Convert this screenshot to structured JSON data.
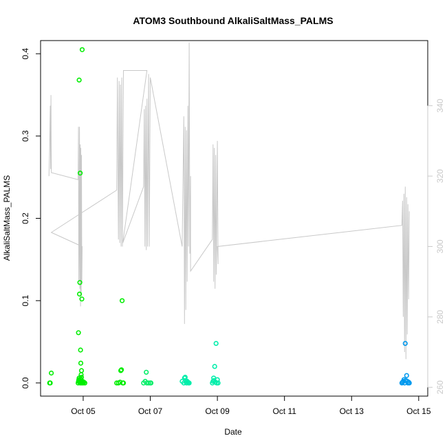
{
  "chart_data": {
    "type": "scatter",
    "title": "ATOM3 Southbound AlkaliSaltMass_PALMS",
    "xlabel": "Date",
    "ylabel": "AlkaliSaltMass_PALMS",
    "x_tick_labels": [
      "Oct 05",
      "Oct 07",
      "Oct 09",
      "Oct 11",
      "Oct 13",
      "Oct 15"
    ],
    "x_tick_values": [
      5,
      7,
      9,
      11,
      13,
      15
    ],
    "xlim": [
      3.73,
      15.27
    ],
    "y_tick_labels": [
      "0.0",
      "0.1",
      "0.2",
      "0.3",
      "0.4"
    ],
    "y_tick_values": [
      0,
      0.1,
      0.2,
      0.3,
      0.4
    ],
    "ylim": [
      -0.016,
      0.416
    ],
    "y2_tick_labels": [
      "260",
      "280",
      "300",
      "320",
      "340"
    ],
    "y2_tick_values": [
      260,
      280,
      300,
      320,
      340
    ],
    "y2lim": [
      257.5,
      358.5
    ],
    "grid": false,
    "colors": {
      "green": "#00ee00",
      "spring": "#00ee66",
      "teal": "#00eeaa",
      "blue": "#0099ee",
      "line": "#c8c8c8"
    },
    "scatter_series": [
      {
        "color": "green",
        "points": [
          [
            4.0,
            0.0
          ],
          [
            4.02,
            0.0
          ],
          [
            4.05,
            0.012
          ],
          [
            4.85,
            0.0
          ],
          [
            4.86,
            0.002
          ],
          [
            4.87,
            0.004
          ],
          [
            4.88,
            0.006
          ],
          [
            4.89,
            0.001
          ],
          [
            4.9,
            0.003
          ],
          [
            4.91,
            0.0
          ],
          [
            4.92,
            0.005
          ],
          [
            4.93,
            0.002
          ],
          [
            4.94,
            0.0
          ],
          [
            4.95,
            0.007
          ],
          [
            4.96,
            0.001
          ],
          [
            4.97,
            0.0
          ],
          [
            4.98,
            0.002
          ],
          [
            5.0,
            0.0
          ],
          [
            5.02,
            0.001
          ],
          [
            5.05,
            0.0
          ],
          [
            4.86,
            0.061
          ],
          [
            4.88,
            0.368
          ],
          [
            4.89,
            0.108
          ],
          [
            4.9,
            0.122
          ],
          [
            4.91,
            0.255
          ],
          [
            4.92,
            0.04
          ],
          [
            4.93,
            0.024
          ],
          [
            4.95,
            0.015
          ],
          [
            4.96,
            0.102
          ],
          [
            4.97,
            0.405
          ],
          [
            4.94,
            0.01
          ],
          [
            6.0,
            0.0
          ],
          [
            6.05,
            0.0
          ],
          [
            6.1,
            0.001
          ],
          [
            6.12,
            0.015
          ],
          [
            6.14,
            0.016
          ],
          [
            6.16,
            0.1
          ],
          [
            6.18,
            0.0
          ],
          [
            6.2,
            0.0
          ]
        ]
      },
      {
        "color": "spring",
        "points": [
          [
            6.8,
            0.0
          ],
          [
            6.85,
            0.002
          ],
          [
            6.88,
            0.013
          ],
          [
            6.9,
            0.0
          ],
          [
            6.95,
            0.0
          ],
          [
            7.0,
            0.0
          ],
          [
            7.02,
            0.0
          ]
        ]
      },
      {
        "color": "teal",
        "points": [
          [
            7.95,
            0.002
          ],
          [
            8.0,
            0.0
          ],
          [
            8.02,
            0.006
          ],
          [
            8.04,
            0.007
          ],
          [
            8.06,
            0.003
          ],
          [
            8.08,
            0.0
          ],
          [
            8.1,
            0.002
          ],
          [
            8.12,
            0.001
          ],
          [
            8.14,
            0.0
          ],
          [
            8.16,
            0.0
          ],
          [
            8.85,
            0.0
          ],
          [
            8.87,
            0.002
          ],
          [
            8.89,
            0.006
          ],
          [
            8.9,
            0.003
          ],
          [
            8.92,
            0.02
          ],
          [
            8.94,
            0.001
          ],
          [
            8.96,
            0.048
          ],
          [
            8.98,
            0.0
          ],
          [
            9.0,
            0.004
          ],
          [
            9.02,
            0.0
          ]
        ]
      },
      {
        "color": "blue",
        "points": [
          [
            14.5,
            0.0
          ],
          [
            14.52,
            0.001
          ],
          [
            14.54,
            0.002
          ],
          [
            14.56,
            0.004
          ],
          [
            14.58,
            0.0
          ],
          [
            14.6,
            0.048
          ],
          [
            14.62,
            0.003
          ],
          [
            14.64,
            0.009
          ],
          [
            14.66,
            0.002
          ],
          [
            14.68,
            0.0
          ],
          [
            14.7,
            0.001
          ],
          [
            14.72,
            0.0
          ]
        ]
      }
    ],
    "line_series": [
      {
        "axis": "right",
        "color": "line",
        "points": [
          [
            3.98,
            320
          ],
          [
            4.0,
            328
          ],
          [
            4.02,
            340
          ],
          [
            4.03,
            322
          ],
          [
            4.04,
            343
          ],
          [
            4.05,
            321
          ],
          [
            4.85,
            319
          ],
          [
            4.86,
            334
          ],
          [
            4.87,
            290
          ],
          [
            4.88,
            300
          ],
          [
            4.89,
            334
          ],
          [
            4.9,
            288
          ],
          [
            4.91,
            329
          ],
          [
            4.92,
            283
          ],
          [
            4.93,
            328
          ],
          [
            4.94,
            286
          ],
          [
            4.95,
            326
          ],
          [
            4.96,
            290
          ],
          [
            4.97,
            300
          ],
          [
            4.05,
            304
          ],
          [
            6.0,
            316
          ],
          [
            6.02,
            348
          ],
          [
            6.05,
            302
          ],
          [
            6.07,
            347
          ],
          [
            6.09,
            301
          ],
          [
            6.11,
            346
          ],
          [
            6.13,
            300
          ],
          [
            6.15,
            348
          ],
          [
            6.17,
            300
          ],
          [
            6.2,
            350
          ],
          [
            6.9,
            350
          ],
          [
            6.18,
            301
          ],
          [
            6.8,
            317
          ],
          [
            6.82,
            339
          ],
          [
            6.84,
            300
          ],
          [
            6.86,
            340
          ],
          [
            6.88,
            299
          ],
          [
            6.9,
            342
          ],
          [
            6.92,
            300
          ],
          [
            6.95,
            349
          ],
          [
            6.97,
            300
          ],
          [
            7.0,
            348
          ],
          [
            7.95,
            300
          ],
          [
            8.0,
            337
          ],
          [
            8.02,
            278
          ],
          [
            8.04,
            334
          ],
          [
            8.06,
            282
          ],
          [
            8.08,
            333
          ],
          [
            8.1,
            290
          ],
          [
            8.12,
            340
          ],
          [
            8.14,
            300
          ],
          [
            8.16,
            358
          ],
          [
            8.18,
            298
          ],
          [
            8.2,
            320
          ],
          [
            8.2,
            293
          ],
          [
            8.85,
            302
          ],
          [
            8.87,
            329
          ],
          [
            8.89,
            290
          ],
          [
            8.91,
            328
          ],
          [
            8.93,
            288
          ],
          [
            8.95,
            326
          ],
          [
            8.97,
            292
          ],
          [
            9.0,
            330
          ],
          [
            9.02,
            295
          ],
          [
            9.0,
            300
          ],
          [
            14.5,
            306
          ],
          [
            14.52,
            313
          ],
          [
            14.54,
            280
          ],
          [
            14.56,
            315
          ],
          [
            14.58,
            270
          ],
          [
            14.6,
            317
          ],
          [
            14.62,
            268
          ],
          [
            14.64,
            314
          ],
          [
            14.66,
            275
          ],
          [
            14.68,
            312
          ],
          [
            14.7,
            285
          ],
          [
            14.72,
            310
          ]
        ]
      }
    ]
  }
}
